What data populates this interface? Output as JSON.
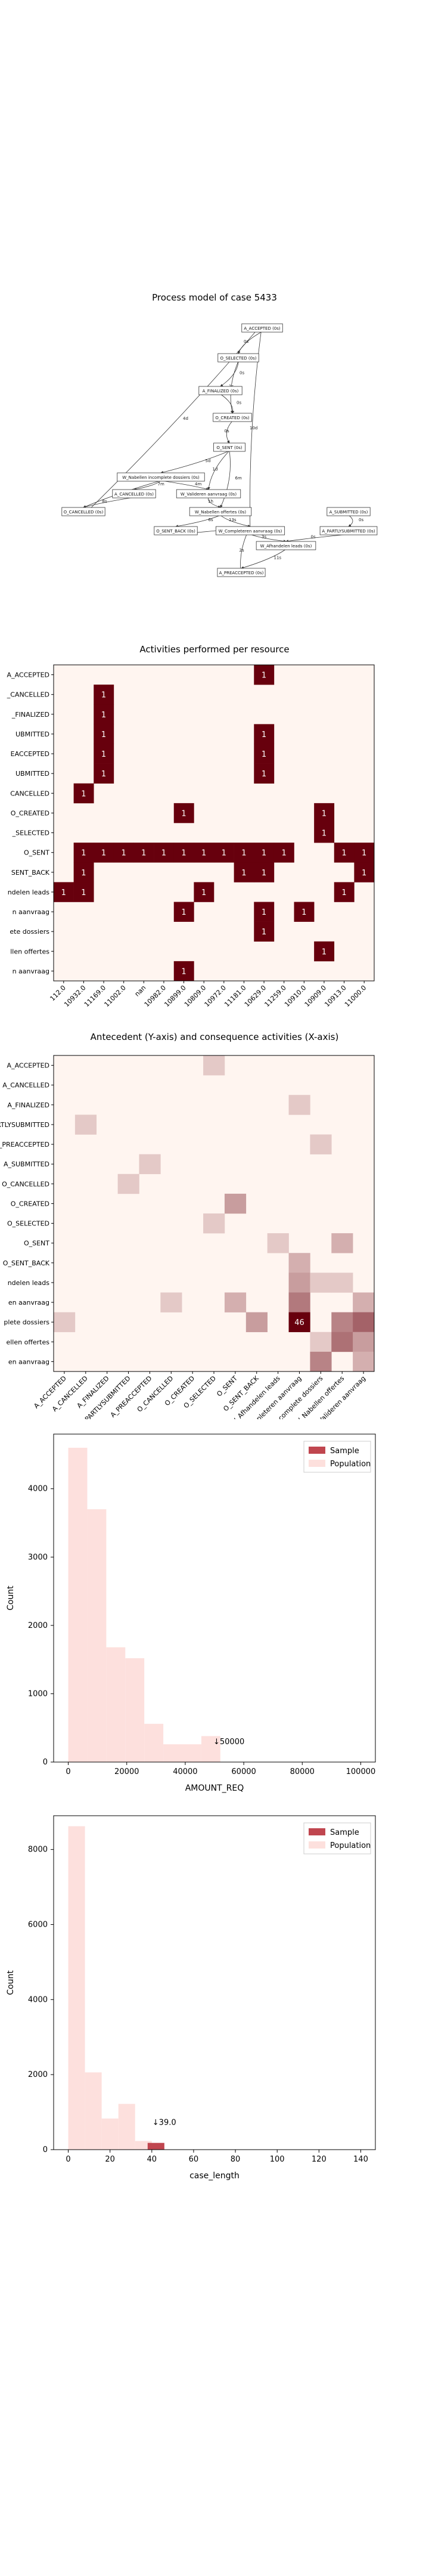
{
  "colors": {
    "heat_dark": "#67000d",
    "heat_light": "#fff5f0",
    "sample": "#c0464f",
    "population": "#fde0dd",
    "graph_line": "#333333"
  },
  "process_graph": {
    "title": "Process model of case 5433",
    "nodes": [
      {
        "id": "A_ACCEPTED",
        "label": "A_ACCEPTED (0s)"
      },
      {
        "id": "O_SELECTED",
        "label": "O_SELECTED (0s)"
      },
      {
        "id": "A_FINALIZED",
        "label": "A_FINALIZED (0s)"
      },
      {
        "id": "O_CREATED",
        "label": "O_CREATED (0s)"
      },
      {
        "id": "O_SENT",
        "label": "O_SENT (0s)"
      },
      {
        "id": "W_Nabellen_incomplete",
        "label": "W_Nabellen incomplete dossiers (0s)"
      },
      {
        "id": "A_CANCELLED",
        "label": "A_CANCELLED (0s)"
      },
      {
        "id": "W_Valideren",
        "label": "W_Valideren aanvraag (0s)"
      },
      {
        "id": "O_CANCELLED",
        "label": "O_CANCELLED (0s)"
      },
      {
        "id": "W_Nabellen_offertes",
        "label": "W_Nabellen offertes (0s)"
      },
      {
        "id": "A_SUBMITTED",
        "label": "A_SUBMITTED (0s)"
      },
      {
        "id": "O_SENT_BACK",
        "label": "O_SENT_BACK (0s)"
      },
      {
        "id": "W_Completeren",
        "label": "W_Completeren aanvraag (0s)"
      },
      {
        "id": "A_PARTLYSUBMITTED",
        "label": "A_PARTLYSUBMITTED (0s)"
      },
      {
        "id": "W_Afhandelen",
        "label": "W_Afhandelen leads (0s)"
      },
      {
        "id": "A_PREACCEPTED",
        "label": "A_PREACCEPTED (0s)"
      }
    ],
    "edge_labels": [
      "0s",
      "1s",
      "2s",
      "3s",
      "5s",
      "6s",
      "7s",
      "8s",
      "11s",
      "13s",
      "1m",
      "2m",
      "4m",
      "6m",
      "7m",
      "1h",
      "1d",
      "2d",
      "4d",
      "5d",
      "6d",
      "10d"
    ]
  },
  "chart_data": [
    {
      "type": "heatmap",
      "title": "Activities performed per resource",
      "x_tick_labels": [
        "112.0",
        "10932.0",
        "11169.0",
        "11002.0",
        "nan",
        "10982.0",
        "10899.0",
        "10809.0",
        "10972.0",
        "11181.0",
        "10629.0",
        "11259.0",
        "10910.0",
        "10909.0",
        "10913.0",
        "11000.0"
      ],
      "y_tick_labels": [
        "A_ACCEPTED",
        "A_CANCELLED",
        "A_FINALIZED",
        "A_SUBMITTED",
        "A_PREACCEPTED",
        "A_PARTLYSUBMITTED",
        "O_CANCELLED",
        "O_CREATED",
        "O_SELECTED",
        "O_SENT",
        "O_SENT_BACK",
        "W_Afhandelen leads",
        "W_Completeren aanvraag",
        "W_Nabellen incomplete dossiers",
        "W_Nabellen offertes",
        "W_Valideren aanvraag"
      ],
      "display_y_labels": [
        "A_ACCEPTED",
        "_CANCELLED",
        "_FINALIZED",
        "UBMITTED",
        "EACCEPTED",
        "UBMITTED",
        "CANCELLED",
        "O_CREATED",
        "_SELECTED",
        "O_SENT",
        "SENT_BACK",
        "ndelen leads",
        "n aanvraag",
        "ete dossiers",
        "llen offertes",
        "n aanvraag"
      ],
      "cells": [
        [
          0,
          10,
          1
        ],
        [
          1,
          2,
          1
        ],
        [
          2,
          2,
          1
        ],
        [
          3,
          2,
          1
        ],
        [
          3,
          10,
          1
        ],
        [
          4,
          2,
          1
        ],
        [
          4,
          10,
          1
        ],
        [
          5,
          2,
          1
        ],
        [
          5,
          10,
          1
        ],
        [
          6,
          1,
          1
        ],
        [
          7,
          6,
          1
        ],
        [
          7,
          13,
          1
        ],
        [
          8,
          13,
          1
        ],
        [
          9,
          1,
          1
        ],
        [
          9,
          2,
          1
        ],
        [
          9,
          3,
          1
        ],
        [
          9,
          4,
          1
        ],
        [
          9,
          5,
          1
        ],
        [
          9,
          6,
          1
        ],
        [
          9,
          7,
          1
        ],
        [
          9,
          8,
          1
        ],
        [
          9,
          9,
          1
        ],
        [
          9,
          10,
          1
        ],
        [
          9,
          11,
          1
        ],
        [
          9,
          14,
          1
        ],
        [
          9,
          15,
          1
        ],
        [
          10,
          1,
          1
        ],
        [
          10,
          9,
          1
        ],
        [
          10,
          10,
          1
        ],
        [
          10,
          15,
          1
        ],
        [
          11,
          0,
          1
        ],
        [
          11,
          1,
          1
        ],
        [
          11,
          7,
          1
        ],
        [
          11,
          14,
          1
        ],
        [
          12,
          6,
          1
        ],
        [
          12,
          10,
          1
        ],
        [
          12,
          12,
          1
        ],
        [
          13,
          10,
          1
        ],
        [
          14,
          13,
          1
        ],
        [
          15,
          6,
          1
        ]
      ]
    },
    {
      "type": "heatmap",
      "title": "Antecedent (Y-axis) and consequence activities (X-axis)",
      "x_tick_labels": [
        "A_ACCEPTED",
        "A_CANCELLED",
        "A_FINALIZED",
        "A_PARTLYSUBMITTED",
        "A_PREACCEPTED",
        "O_CANCELLED",
        "O_CREATED",
        "O_SELECTED",
        "O_SENT",
        "O_SENT_BACK",
        "W_Afhandelen leads",
        "W_Completeren aanvraag",
        "W_Nabellen incomplete dossiers",
        "W_Nabellen offertes",
        "W_Valideren aanvraag"
      ],
      "display_x_labels": [
        "A_ACCEPTED",
        "A_CANCELLED",
        "A_FINALIZED",
        "A_PARTLYSUBMITTED",
        "A_PREACCEPTED",
        "O_CANCELLED",
        "O_CREATED",
        "O_SELECTED",
        "O_SENT",
        "O_SENT_BACK",
        "W_Afhandelen leads",
        "W_Completeren aanvraag",
        "W_Nabellen incomplete dossiers",
        "W_Nabellen offertes",
        "W_Valideren aanvraag"
      ],
      "y_tick_labels": [
        "A_ACCEPTED",
        "A_CANCELLED",
        "A_FINALIZED",
        "A_PARTLYSUBMITTED",
        "A_PREACCEPTED",
        "A_SUBMITTED",
        "O_CANCELLED",
        "O_CREATED",
        "O_SELECTED",
        "O_SENT",
        "O_SENT_BACK",
        "W_Afhandelen leads",
        "W_Completeren aanvraag",
        "W_Nabellen incomplete dossiers",
        "W_Nabellen offertes",
        "W_Valideren aanvraag"
      ],
      "display_y_labels": [
        "A_ACCEPTED",
        "A_CANCELLED",
        "A_FINALIZED",
        "PARTLYSUBMITTED",
        "A_PREACCEPTED",
        "A_SUBMITTED",
        "O_CANCELLED",
        "O_CREATED",
        "O_SELECTED",
        "O_SENT",
        "O_SENT_BACK",
        "ndelen leads",
        "en aanvraag",
        "plete dossiers",
        "ellen offertes",
        "en aanvraag"
      ],
      "cells": [
        [
          0,
          7,
          1
        ],
        [
          2,
          11,
          1
        ],
        [
          3,
          1,
          1
        ],
        [
          4,
          12,
          1
        ],
        [
          5,
          4,
          1
        ],
        [
          6,
          3,
          1
        ],
        [
          7,
          8,
          3
        ],
        [
          8,
          7,
          1
        ],
        [
          9,
          10,
          1
        ],
        [
          9,
          13,
          2
        ],
        [
          10,
          11,
          2
        ],
        [
          11,
          11,
          3
        ],
        [
          11,
          12,
          1
        ],
        [
          11,
          13,
          1
        ],
        [
          12,
          11,
          6
        ],
        [
          12,
          5,
          1
        ],
        [
          12,
          8,
          2
        ],
        [
          12,
          14,
          2
        ],
        [
          13,
          0,
          1
        ],
        [
          13,
          9,
          3
        ],
        [
          13,
          11,
          46
        ],
        [
          13,
          13,
          5
        ],
        [
          13,
          14,
          9
        ],
        [
          14,
          12,
          1
        ],
        [
          14,
          13,
          7
        ],
        [
          14,
          14,
          3
        ],
        [
          15,
          12,
          5
        ],
        [
          15,
          14,
          2
        ]
      ],
      "annotated_value": 46
    },
    {
      "type": "bar",
      "title": "",
      "xlabel": "AMOUNT_REQ",
      "ylabel": "Count",
      "xlim": [
        -5000,
        105000
      ],
      "ylim": [
        0,
        4800
      ],
      "x_ticks": [
        0,
        20000,
        40000,
        60000,
        80000,
        100000
      ],
      "y_ticks": [
        0,
        1000,
        2000,
        3000,
        4000
      ],
      "legend": [
        "Sample",
        "Population"
      ],
      "legend_position": "top-right",
      "bin_edges": [
        0,
        6500,
        13000,
        19500,
        26000,
        32500,
        39000,
        45500,
        52000
      ],
      "population_counts": [
        4600,
        3700,
        1680,
        1520,
        560,
        260,
        260,
        380
      ],
      "sample_value": 50000,
      "sample_label": "↓50000"
    },
    {
      "type": "bar",
      "title": "",
      "xlabel": "case_length",
      "ylabel": "Count",
      "xlim": [
        -7,
        147
      ],
      "ylim": [
        0,
        8900
      ],
      "x_ticks": [
        0,
        20,
        40,
        60,
        80,
        100,
        120,
        140
      ],
      "y_ticks": [
        0,
        2000,
        4000,
        6000,
        8000
      ],
      "legend": [
        "Sample",
        "Population"
      ],
      "legend_position": "top-right",
      "bin_edges": [
        0,
        8,
        16,
        24,
        32,
        40,
        48
      ],
      "population_counts": [
        8620,
        2060,
        830,
        1220,
        230,
        0
      ],
      "sample_bin": [
        38,
        46
      ],
      "sample_count": 180,
      "sample_label": "↓39.0"
    }
  ]
}
